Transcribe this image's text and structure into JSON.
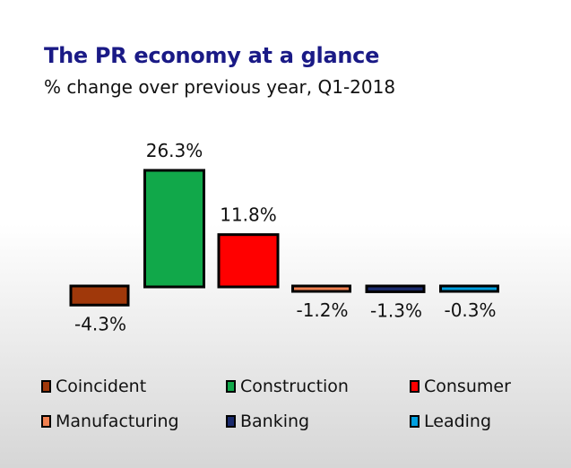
{
  "chart_data": {
    "type": "bar",
    "title": "The PR economy at a glance",
    "subtitle": "% change over previous year, Q1-2018",
    "categories": [
      "Coincident",
      "Construction",
      "Consumer",
      "Manufacturing",
      "Banking",
      "Leading"
    ],
    "values": [
      -4.3,
      26.3,
      11.8,
      -1.2,
      -1.3,
      -0.3
    ],
    "data_labels": [
      "-4.3%",
      "26.3%",
      "11.8%",
      "-1.2%",
      "-1.3%",
      "-0.3%"
    ],
    "colors": [
      "#a0380a",
      "#11a84a",
      "#ff0000",
      "#f08050",
      "#1a2a6c",
      "#00a0e0"
    ],
    "xlabel": "",
    "ylabel": "",
    "grid": false,
    "legend_position": "bottom",
    "legend": [
      "Coincident",
      "Construction",
      "Consumer",
      "Manufacturing",
      "Banking",
      "Leading"
    ]
  }
}
